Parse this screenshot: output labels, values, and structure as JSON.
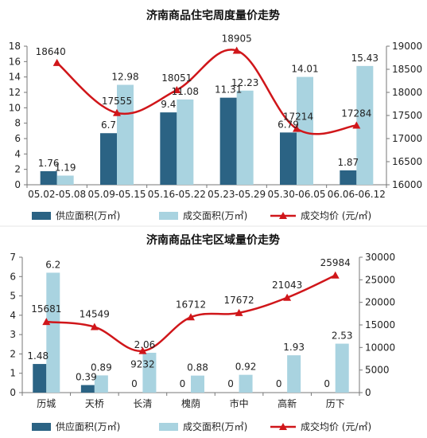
{
  "colors": {
    "supply": "#2b6384",
    "deal": "#a9d3e0",
    "price": "#d0161a",
    "axis": "#777777"
  },
  "legend": {
    "supply": "供应面积(万㎡)",
    "deal": "成交面积(万㎡)",
    "price": "成交均价 (元/㎡)"
  },
  "chart_data": [
    {
      "type": "bar",
      "title": "济南商品住宅周度量价走势",
      "categories": [
        "05.02-05.08",
        "05.09-05.15",
        "05.16-05.22",
        "05.23-05.29",
        "05.30-06.05",
        "06.06-06.12"
      ],
      "series": [
        {
          "name": "供应面积(万㎡)",
          "axis": "left",
          "values": [
            1.76,
            6.7,
            9.4,
            11.31,
            6.79,
            1.87
          ],
          "labels": [
            "1.76",
            "6.7",
            "9.4",
            "11.31",
            "6.79",
            "1.87"
          ]
        },
        {
          "name": "成交面积(万㎡)",
          "axis": "left",
          "values": [
            1.19,
            12.98,
            11.08,
            12.23,
            14.01,
            15.43
          ],
          "labels": [
            "1.19",
            "12.98",
            "11.08",
            "12.23",
            "14.01",
            "15.43"
          ]
        },
        {
          "name": "成交均价 (元/㎡)",
          "axis": "right",
          "type": "line",
          "values": [
            18640,
            17555,
            18051,
            18905,
            17214,
            17284
          ],
          "labels": [
            "18640",
            "17555",
            "18051",
            "18905",
            "17214",
            "17284"
          ]
        }
      ],
      "y_left": {
        "min": 0,
        "max": 18,
        "step": 2,
        "ticks": [
          "0",
          "2",
          "4",
          "6",
          "8",
          "10",
          "12",
          "14",
          "16",
          "18"
        ]
      },
      "y_right": {
        "min": 16000,
        "max": 19000,
        "step": 500,
        "ticks": [
          "16000",
          "16500",
          "17000",
          "17500",
          "18000",
          "18500",
          "19000"
        ]
      },
      "grid": false,
      "legend_position": "bottom"
    },
    {
      "type": "bar",
      "title": "济南商品住宅区域量价走势",
      "categories": [
        "历城",
        "天桥",
        "长清",
        "槐荫",
        "市中",
        "高新",
        "历下"
      ],
      "series": [
        {
          "name": "供应面积(万㎡)",
          "axis": "left",
          "values": [
            1.48,
            0.39,
            0,
            0,
            0,
            0,
            0
          ],
          "labels": [
            "1.48",
            "0.39",
            "0",
            "0",
            "0",
            "0",
            "0"
          ]
        },
        {
          "name": "成交面积(万㎡)",
          "axis": "left",
          "values": [
            6.2,
            0.89,
            2.06,
            0.88,
            0.92,
            1.93,
            2.53
          ],
          "labels": [
            "6.2",
            "0.89",
            "2.06",
            "0.88",
            "0.92",
            "1.93",
            "2.53"
          ]
        },
        {
          "name": "成交均价 (元/㎡)",
          "axis": "right",
          "type": "line",
          "values": [
            15681,
            14549,
            9232,
            16712,
            17672,
            21043,
            25984
          ],
          "labels": [
            "15681",
            "14549",
            "9232",
            "16712",
            "17672",
            "21043",
            "25984"
          ]
        }
      ],
      "y_left": {
        "min": 0,
        "max": 7,
        "step": 1,
        "ticks": [
          "0",
          "1",
          "2",
          "3",
          "4",
          "5",
          "6",
          "7"
        ]
      },
      "y_right": {
        "min": 0,
        "max": 30000,
        "step": 5000,
        "ticks": [
          "0",
          "5000",
          "10000",
          "15000",
          "20000",
          "25000",
          "30000"
        ]
      },
      "grid": false,
      "legend_position": "bottom"
    }
  ]
}
